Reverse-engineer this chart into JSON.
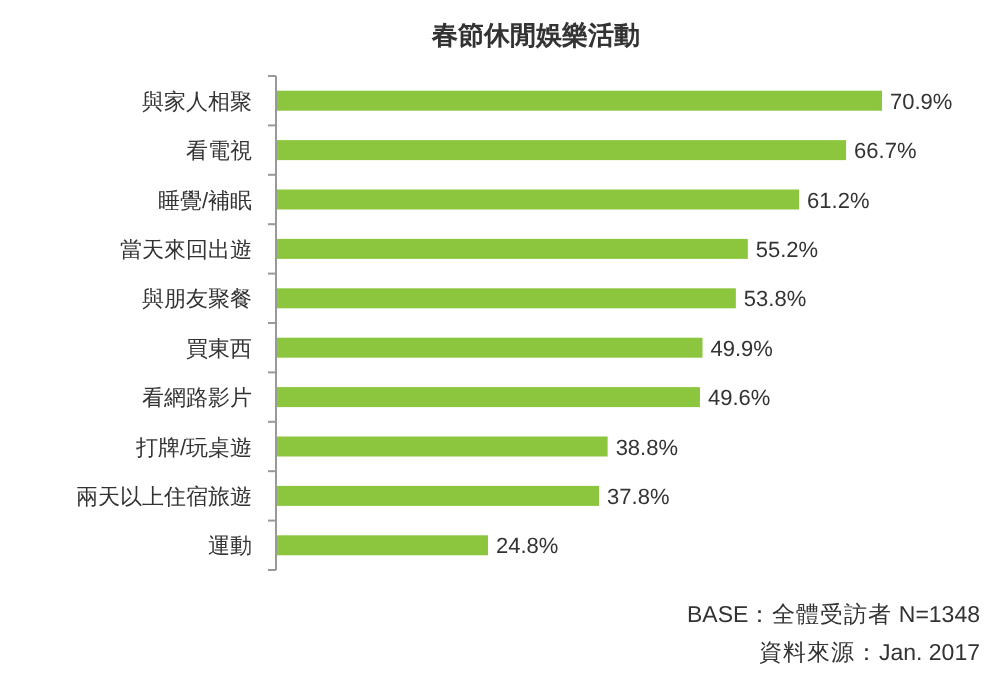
{
  "chart_data": {
    "type": "bar",
    "orientation": "horizontal",
    "title": "春節休閒娛樂活動",
    "categories": [
      "與家人相聚",
      "看電視",
      "睡覺/補眠",
      "當天來回出遊",
      "與朋友聚餐",
      "買東西",
      "看網路影片",
      "打牌/玩桌遊",
      "兩天以上住宿旅遊",
      "運動"
    ],
    "values": [
      70.9,
      66.7,
      61.2,
      55.2,
      53.8,
      49.9,
      49.6,
      38.8,
      37.8,
      24.8
    ],
    "value_labels": [
      "70.9%",
      "66.7%",
      "61.2%",
      "55.2%",
      "53.8%",
      "49.9%",
      "49.6%",
      "38.8%",
      "37.8%",
      "24.8%"
    ],
    "color": "#8cc63f",
    "annotations": [
      "BASE：全體受訪者 N=1348",
      "資料來源：Jan. 2017"
    ]
  }
}
